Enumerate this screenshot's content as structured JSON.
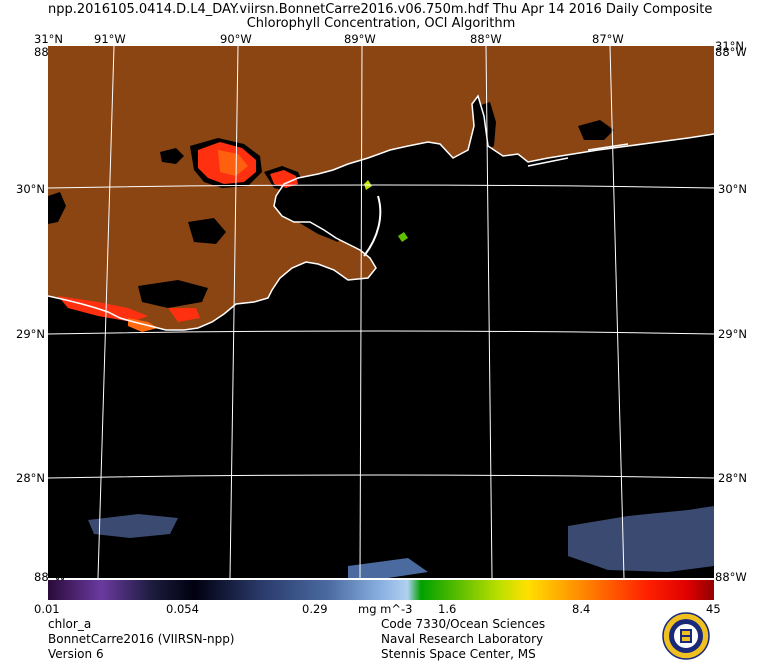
{
  "header": {
    "line1": "npp.2016105.0414.D.L4_DAY.viirsn.BonnetCarre2016.v06.750m.hdf     Thu Apr 14 2016 Daily Composite",
    "line2": "Chlorophyll Concentration, OCI Algorithm"
  },
  "axes": {
    "top_labels": [
      {
        "text": "31°N"
      },
      {
        "text": "91°W"
      },
      {
        "text": "90°W"
      },
      {
        "text": "89°W"
      },
      {
        "text": "88°W"
      },
      {
        "text": "87°W"
      }
    ],
    "left_labels": [
      "30°N",
      "29°N",
      "28°N"
    ],
    "right_labels": [
      "31°N",
      "30°N",
      "29°N",
      "28°N"
    ],
    "corner_top_left": "88°W",
    "corner_top_right": "88°W",
    "corner_bottom_left": "88°W",
    "corner_bottom_right": "88°W"
  },
  "colorbar": {
    "ticks": [
      "0.01",
      "0.054",
      "0.29",
      "mg m^-3",
      "1.6",
      "8.4",
      "45"
    ],
    "colors": [
      "#2a0a3a",
      "#5a2a8a",
      "#6a3aa0",
      "#1a1a3a",
      "#000010",
      "#2a3a6a",
      "#4a6aa0",
      "#8ab0e0",
      "#b0d0f0",
      "#00a000",
      "#60c000",
      "#c0e000",
      "#ffe000",
      "#ffa000",
      "#ff6000",
      "#ff2000",
      "#e00000",
      "#900000"
    ]
  },
  "footer": {
    "left": [
      "chlor_a",
      "BonnetCarre2016 (VIIRSN-npp)",
      "Version 6"
    ],
    "right": [
      "Code 7330/Ocean Sciences",
      "Naval Research Laboratory",
      "Stennis Space Center, MS"
    ]
  },
  "colors": {
    "land": "#8b4513",
    "water": "#000000",
    "coast": "#ffffff",
    "grid": "#ffffff",
    "bloom_red": "#ff3010",
    "bloom_orange": "#ff6a10",
    "low_chl_blue": "#3a4a70"
  },
  "icons": {
    "logo": "nrl-seal-icon"
  }
}
